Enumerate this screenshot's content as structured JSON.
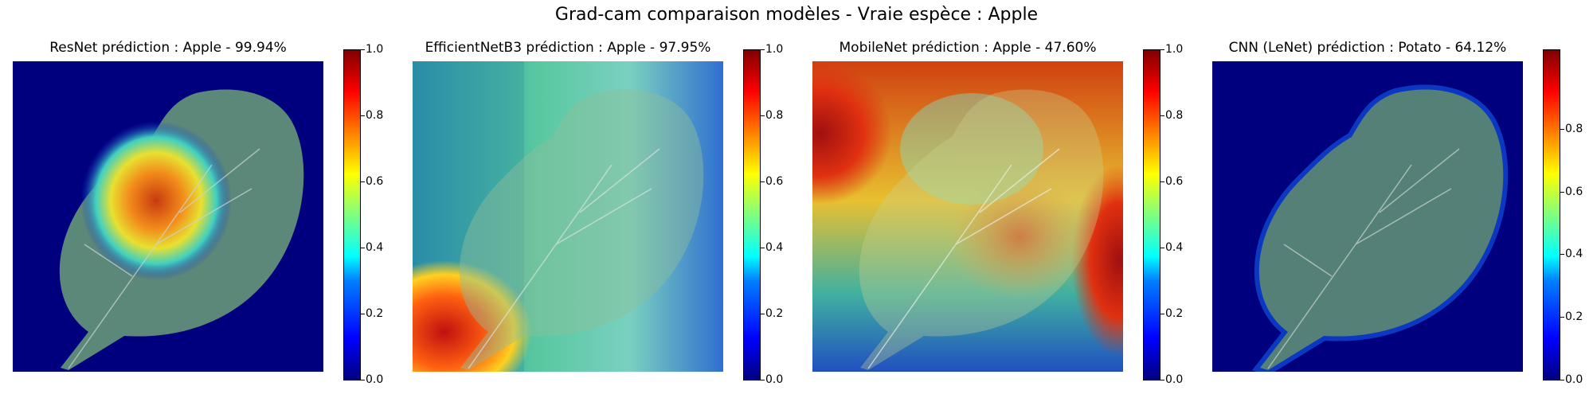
{
  "figure_title": "Grad-cam comparaison modèles - Vraie espèce : Apple",
  "panels": [
    {
      "title": "ResNet prédiction : Apple - 99.94%",
      "colorbar_ticks": [
        "1.0",
        "0.8",
        "0.6",
        "0.4",
        "0.2",
        "0.0"
      ],
      "colorbar_range": [
        0.0,
        1.0
      ]
    },
    {
      "title": "EfficientNetB3 prédiction : Apple - 97.95%",
      "colorbar_ticks": [
        "1.0",
        "0.8",
        "0.6",
        "0.4",
        "0.2",
        "0.0"
      ],
      "colorbar_range": [
        0.0,
        1.0
      ]
    },
    {
      "title": "MobileNet prédiction : Apple - 47.60%",
      "colorbar_ticks": [
        "1.0",
        "0.8",
        "0.6",
        "0.4",
        "0.2",
        "0.0"
      ],
      "colorbar_range": [
        0.0,
        1.0
      ]
    },
    {
      "title": "CNN (LeNet) prédiction : Potato - 64.12%",
      "colorbar_ticks": [
        "0.8",
        "0.6",
        "0.4",
        "0.2",
        "0.0"
      ],
      "colorbar_range": [
        0.0,
        0.92
      ]
    }
  ],
  "colormap": "jet",
  "colors": {
    "low": "#00007f",
    "high": "#7f0000"
  }
}
